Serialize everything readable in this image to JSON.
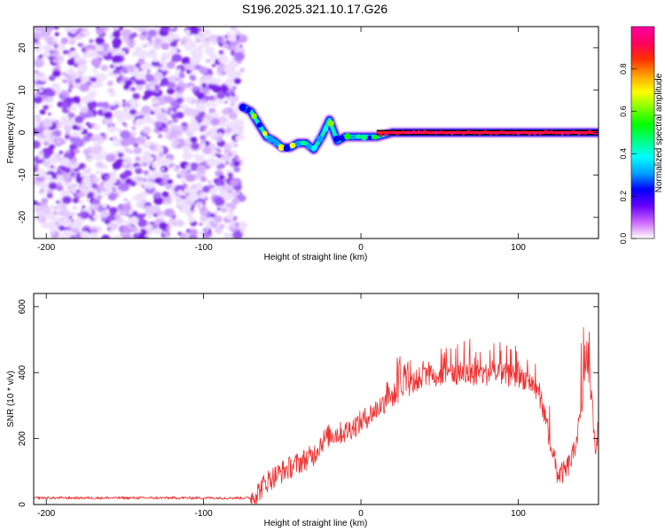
{
  "title": "S196.2025.321.10.17.G26",
  "chart_data": [
    {
      "type": "heatmap",
      "name": "spectrogram",
      "xlabel": "Height of straight line (km)",
      "ylabel": "Frequency (Hz)",
      "xlim": [
        -208,
        151
      ],
      "ylim": [
        -25,
        25
      ],
      "xticks": [
        -200,
        -100,
        0,
        100
      ],
      "yticks": [
        -20,
        -10,
        0,
        10,
        20
      ],
      "colorbar": {
        "label": "Normalized spectral amplitude",
        "range": [
          0,
          1
        ],
        "ticks": [
          0.0,
          0.2,
          0.4,
          0.6,
          0.8
        ],
        "colors": [
          "#ffffff",
          "#cc66ff",
          "#6600ff",
          "#0000ff",
          "#00a0ff",
          "#00ffff",
          "#00ff80",
          "#00ff00",
          "#80ff00",
          "#ffff00",
          "#ffa000",
          "#ff3000",
          "#ff0060",
          "#ff00a0"
        ]
      },
      "noise_region_km": [
        -208,
        -75
      ],
      "signal_trace": {
        "x": [
          -75,
          -70,
          -65,
          -60,
          -55,
          -50,
          -45,
          -40,
          -35,
          -30,
          -25,
          -20,
          -15,
          -10,
          -5,
          0,
          10,
          20,
          30,
          50,
          100,
          151
        ],
        "y": [
          6,
          5,
          2,
          -1,
          -2,
          -3.5,
          -3.5,
          -2.5,
          -2.5,
          -4,
          -1,
          3,
          -2,
          -1,
          -1,
          -1,
          -1,
          0,
          0,
          0,
          0,
          0
        ]
      }
    },
    {
      "type": "line",
      "name": "snr",
      "xlabel": "Height of straight line (km)",
      "ylabel": "SNR (10 * v/v)",
      "xlim": [
        -208,
        151
      ],
      "ylim": [
        0,
        640
      ],
      "xticks": [
        -200,
        -100,
        0,
        100
      ],
      "yticks": [
        0,
        200,
        400,
        600
      ],
      "color": "#ee3333",
      "envelope": {
        "x": [
          -208,
          -70,
          -65,
          -60,
          -55,
          -50,
          -40,
          -30,
          -25,
          -20,
          -10,
          0,
          10,
          20,
          30,
          40,
          60,
          80,
          100,
          105,
          110,
          115,
          120,
          125,
          130,
          135,
          140,
          143,
          145,
          147,
          149,
          151
        ],
        "y": [
          20,
          20,
          40,
          70,
          85,
          100,
          125,
          150,
          190,
          210,
          220,
          250,
          290,
          330,
          360,
          390,
          395,
          395,
          390,
          380,
          360,
          310,
          200,
          90,
          100,
          150,
          280,
          410,
          400,
          300,
          180,
          230
        ]
      },
      "spike_amplitude": 70
    }
  ]
}
